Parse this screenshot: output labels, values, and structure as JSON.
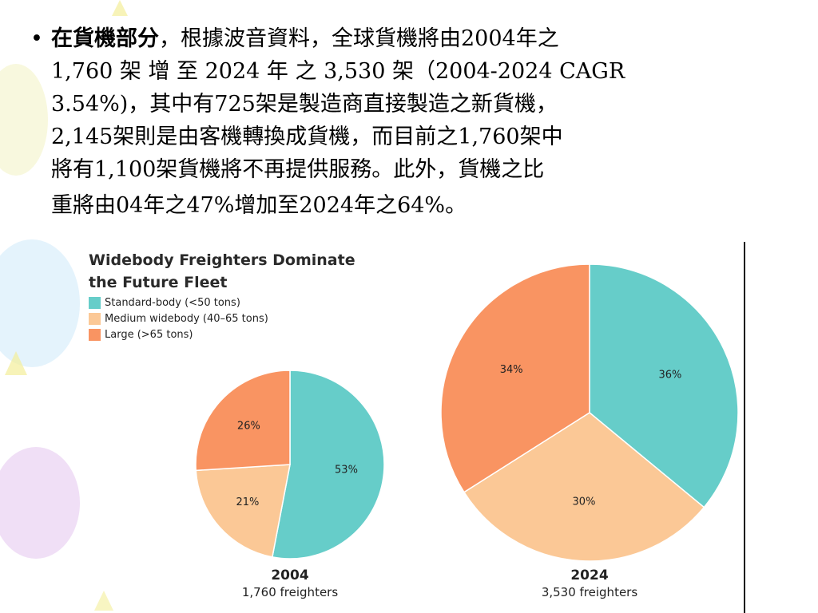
{
  "slide": {
    "bullet": "•",
    "heading": "在貨機部分",
    "paragraph_lines": [
      "，根據波音資料，全球貨機將由2004年之",
      "1,760 架 增 至 2024 年 之 3,530 架（2004-2024  CAGR",
      "3.54%)，其中有725架是製造商直接製造之新貨機，",
      "2,145架則是由客機轉換成貨機，而目前之1,760架中",
      "將有1,100架貨機將不再提供服務。此外，貨機之比",
      "重將由04年之47%增加至2024年之64%。"
    ]
  },
  "colors": {
    "standard": "#66cdc9",
    "medium": "#fbc896",
    "large": "#f99462"
  },
  "chart_data": {
    "type": "pie",
    "title_lines": [
      "Widebody Freighters Dominate",
      "the Future Fleet"
    ],
    "legend": [
      {
        "label": "Standard-body (<50 tons)",
        "key": "standard"
      },
      {
        "label": "Medium widebody (40–65 tons)",
        "key": "medium"
      },
      {
        "label": "Large (>65 tons)",
        "key": "large"
      }
    ],
    "pies": [
      {
        "year": "2004",
        "subtitle": "1,760 freighters",
        "slices": [
          {
            "key": "standard",
            "value": 53,
            "label": "53%"
          },
          {
            "key": "medium",
            "value": 21,
            "label": "21%"
          },
          {
            "key": "large",
            "value": 26,
            "label": "26%"
          }
        ]
      },
      {
        "year": "2024",
        "subtitle": "3,530 freighters",
        "slices": [
          {
            "key": "standard",
            "value": 36,
            "label": "36%"
          },
          {
            "key": "medium",
            "value": 30,
            "label": "30%"
          },
          {
            "key": "large",
            "value": 34,
            "label": "34%"
          }
        ]
      }
    ]
  }
}
